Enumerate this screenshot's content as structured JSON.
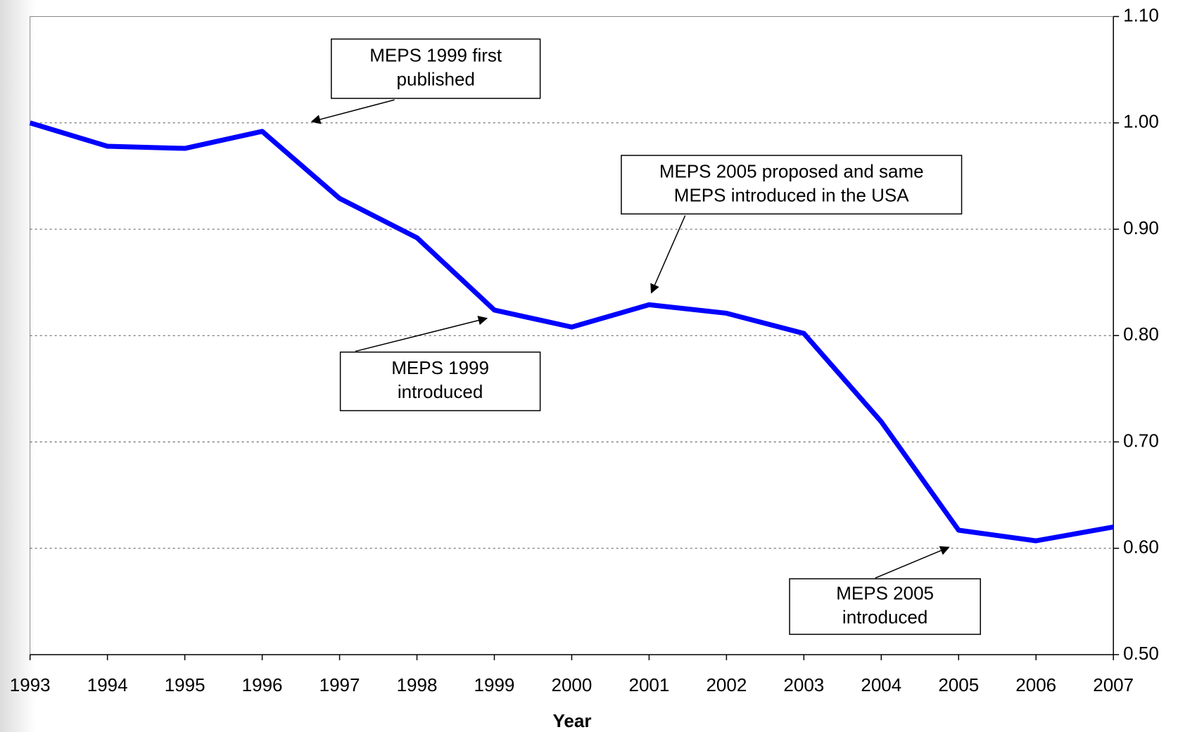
{
  "chart_data": {
    "type": "line",
    "x_label": "Year",
    "x": [
      1993,
      1994,
      1995,
      1996,
      1997,
      1998,
      1999,
      2000,
      2001,
      2002,
      2003,
      2004,
      2005,
      2006,
      2007
    ],
    "series": [
      {
        "color": "#0000ff",
        "values": [
          1.0,
          0.978,
          0.976,
          0.992,
          0.929,
          0.892,
          0.824,
          0.808,
          0.829,
          0.821,
          0.802,
          0.719,
          0.617,
          0.607,
          0.62
        ]
      }
    ],
    "xlim": [
      1993,
      2007
    ],
    "xticks": [
      1993,
      1994,
      1995,
      1996,
      1997,
      1998,
      1999,
      2000,
      2001,
      2002,
      2003,
      2004,
      2005,
      2006,
      2007
    ],
    "ylim": [
      0.5,
      1.1
    ],
    "yticks": [
      {
        "value": 0.5,
        "label": "0.50"
      },
      {
        "value": 0.6,
        "label": "0.60"
      },
      {
        "value": 0.7,
        "label": "0.70"
      },
      {
        "value": 0.8,
        "label": "0.80"
      },
      {
        "value": 0.9,
        "label": "0.90"
      },
      {
        "value": 1.0,
        "label": "1.00"
      },
      {
        "value": 1.1,
        "label": "1.10"
      }
    ],
    "y_axis_side": "right",
    "grid": true,
    "annotations": [
      {
        "lines": [
          "MEPS 1999 first",
          "published"
        ]
      },
      {
        "lines": [
          "MEPS 2005 proposed and same",
          "MEPS introduced in the USA"
        ]
      },
      {
        "lines": [
          "MEPS 1999",
          "introduced"
        ]
      },
      {
        "lines": [
          "MEPS 2005",
          "introduced"
        ]
      }
    ]
  }
}
